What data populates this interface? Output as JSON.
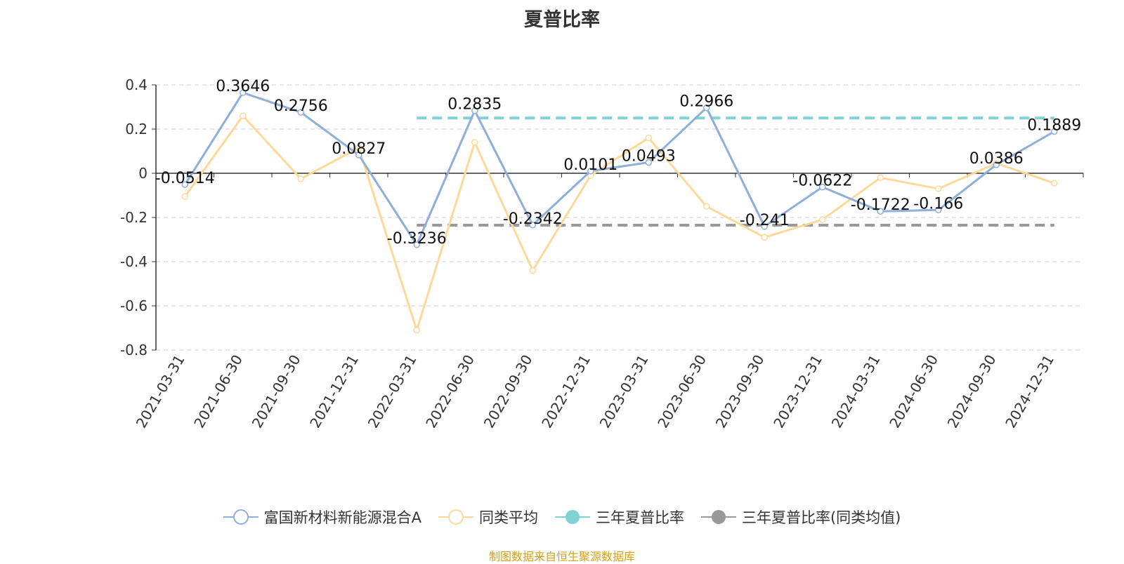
{
  "chart_data": {
    "type": "line",
    "title": "夏普比率",
    "categories": [
      "2021-03-31",
      "2021-06-30",
      "2021-09-30",
      "2021-12-31",
      "2022-03-31",
      "2022-06-30",
      "2022-09-30",
      "2022-12-31",
      "2023-03-31",
      "2023-06-30",
      "2023-09-30",
      "2023-12-31",
      "2024-03-31",
      "2024-06-30",
      "2024-09-30",
      "2024-12-31"
    ],
    "ylim": [
      -0.8,
      0.4
    ],
    "yticks": [
      0.4,
      0.2,
      0,
      -0.2,
      -0.4,
      -0.6,
      -0.8
    ],
    "ytick_labels": [
      "0.4",
      "0.2",
      "0",
      "-0.2",
      "-0.4",
      "-0.6",
      "-0.8"
    ],
    "grid": true,
    "legend_position": "bottom",
    "series": [
      {
        "name": "富国新材料新能源混合A",
        "color": "#8eaedb",
        "values": [
          -0.0514,
          0.3646,
          0.2756,
          0.0827,
          -0.3236,
          0.2835,
          -0.2342,
          0.0101,
          0.0493,
          0.2966,
          -0.241,
          -0.0622,
          -0.1722,
          -0.166,
          0.0386,
          0.1889
        ],
        "labels": [
          "-0.0514",
          "0.3646",
          "0.2756",
          "0.0827",
          "-0.3236",
          "0.2835",
          "-0.2342",
          "0.0101",
          "0.0493",
          "0.2966",
          "-0.241",
          "-0.0622",
          "-0.1722",
          "-0.166",
          "0.0386",
          "0.1889"
        ]
      },
      {
        "name": "同类平均",
        "color": "#fdd999",
        "values": [
          -0.105,
          0.26,
          -0.025,
          0.115,
          -0.71,
          0.14,
          -0.44,
          -0.01,
          0.16,
          -0.15,
          -0.29,
          -0.21,
          -0.02,
          -0.07,
          0.045,
          -0.045
        ]
      }
    ],
    "reference_lines": [
      {
        "name": "三年夏普比率",
        "color": "#7fd3d3",
        "value": 0.25,
        "start_index": 4
      },
      {
        "name": "三年夏普比率(同类均值)",
        "color": "#999999",
        "value": -0.235,
        "start_index": 4
      }
    ]
  },
  "source": "制图数据来自恒生聚源数据库"
}
